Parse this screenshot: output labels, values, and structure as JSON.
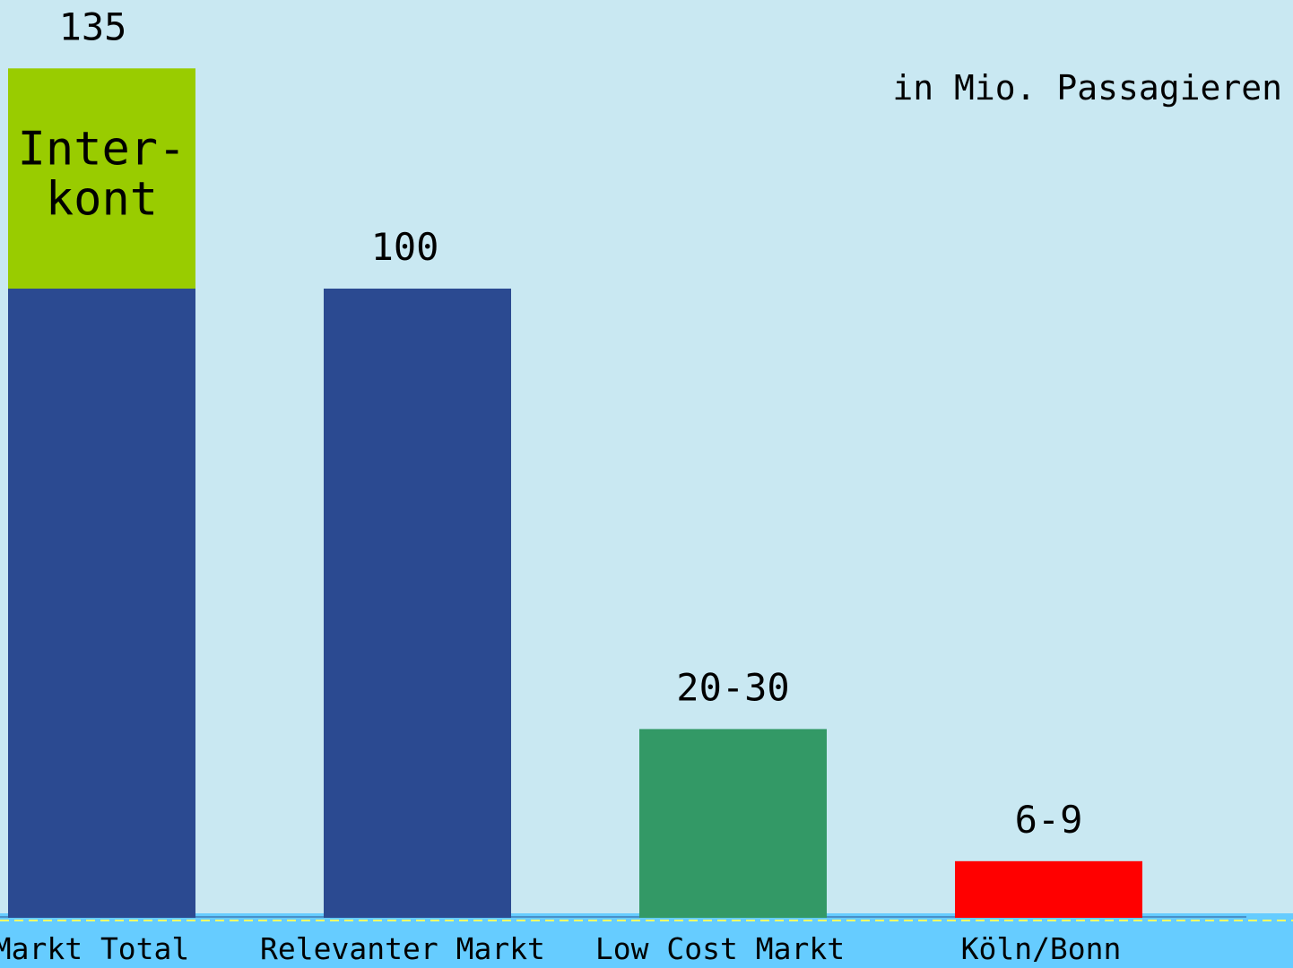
{
  "chart_data": {
    "type": "bar",
    "unit_label": "in Mio. Passagieren",
    "categories": [
      "Markt Total",
      "Relevanter Markt",
      "Low Cost Markt",
      "Köln/Bonn"
    ],
    "values": [
      135,
      100,
      30,
      9
    ],
    "value_labels": [
      "135",
      "100",
      "20-30",
      "6-9"
    ],
    "stacked_segment": {
      "category_index": 0,
      "label_lines": [
        "Inter-",
        "kont"
      ],
      "from": 100,
      "to": 135,
      "color": "#99cc00"
    },
    "colors": [
      "#2b4a91",
      "#2b4a91",
      "#339966",
      "#ff0000"
    ],
    "ylim": [
      0,
      135
    ],
    "grid": false,
    "colors_misc": {
      "background": "#c9e8f2",
      "baseline_band": "#66ccff",
      "dashed_line": "#ffff66"
    }
  }
}
